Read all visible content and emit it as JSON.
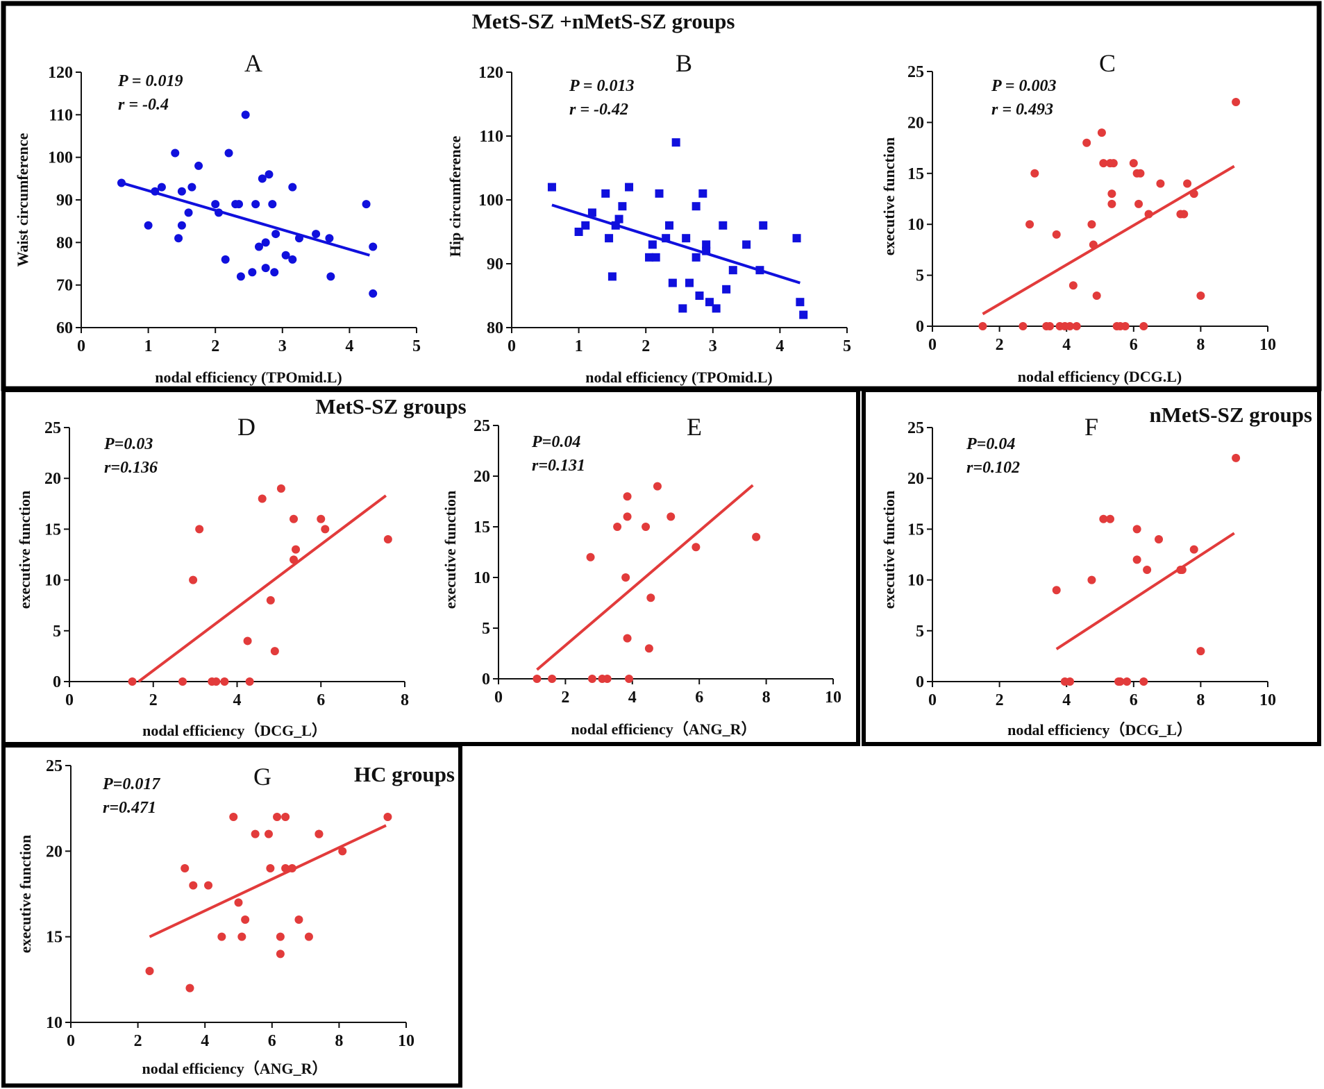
{
  "colors": {
    "blue": "#1010dd",
    "red": "#e23b3b",
    "frame": "#000000"
  },
  "groups": {
    "all": "MetS-SZ +nMetS-SZ groups",
    "mets": "MetS-SZ groups",
    "nmets": "nMetS-SZ groups",
    "hc": "HC groups"
  },
  "chart_data": [
    {
      "type": "scatter",
      "panel": "A",
      "group": "MetS-SZ +nMetS-SZ groups",
      "xlabel": "nodal efficiency (TPOmid.L)",
      "ylabel": "Waist circumference",
      "stat_p": "P = 0.019",
      "stat_r": "r = -0.4",
      "xlim": [
        0,
        5
      ],
      "ylim": [
        60,
        120
      ],
      "xticks": [
        0,
        1,
        2,
        3,
        4,
        5
      ],
      "yticks": [
        60,
        70,
        80,
        90,
        100,
        110,
        120
      ],
      "marker": "circle",
      "color": "#1010dd",
      "points": [
        [
          0.6,
          94
        ],
        [
          1.0,
          84
        ],
        [
          1.1,
          92
        ],
        [
          1.2,
          93
        ],
        [
          1.4,
          101
        ],
        [
          1.45,
          81
        ],
        [
          1.5,
          84
        ],
        [
          1.5,
          92
        ],
        [
          1.6,
          87
        ],
        [
          1.65,
          93
        ],
        [
          1.75,
          98
        ],
        [
          2.0,
          89
        ],
        [
          2.05,
          87
        ],
        [
          2.15,
          76
        ],
        [
          2.2,
          101
        ],
        [
          2.3,
          89
        ],
        [
          2.35,
          89
        ],
        [
          2.38,
          72
        ],
        [
          2.45,
          110
        ],
        [
          2.55,
          73
        ],
        [
          2.6,
          89
        ],
        [
          2.65,
          79
        ],
        [
          2.7,
          95
        ],
        [
          2.75,
          74
        ],
        [
          2.75,
          80
        ],
        [
          2.8,
          96
        ],
        [
          2.85,
          89
        ],
        [
          2.88,
          73
        ],
        [
          2.9,
          82
        ],
        [
          3.05,
          77
        ],
        [
          3.15,
          93
        ],
        [
          3.15,
          76
        ],
        [
          3.25,
          81
        ],
        [
          3.5,
          82
        ],
        [
          3.7,
          81
        ],
        [
          3.72,
          72
        ],
        [
          4.25,
          89
        ],
        [
          4.35,
          79
        ],
        [
          4.35,
          68
        ]
      ],
      "fit": [
        [
          0.6,
          94
        ],
        [
          4.3,
          77
        ]
      ]
    },
    {
      "type": "scatter",
      "panel": "B",
      "group": "MetS-SZ +nMetS-SZ groups",
      "xlabel": "nodal efficiency (TPOmid.L)",
      "ylabel": "Hip circumference",
      "stat_p": "P = 0.013",
      "stat_r": "r = -0.42",
      "xlim": [
        0,
        5
      ],
      "ylim": [
        80,
        120
      ],
      "xticks": [
        0,
        1,
        2,
        3,
        4,
        5
      ],
      "yticks": [
        80,
        90,
        100,
        110,
        120
      ],
      "marker": "square",
      "color": "#1010dd",
      "points": [
        [
          0.6,
          102
        ],
        [
          1.0,
          95
        ],
        [
          1.1,
          96
        ],
        [
          1.2,
          98
        ],
        [
          1.4,
          101
        ],
        [
          1.45,
          94
        ],
        [
          1.5,
          88
        ],
        [
          1.55,
          96
        ],
        [
          1.6,
          97
        ],
        [
          1.65,
          99
        ],
        [
          1.75,
          102
        ],
        [
          2.05,
          91
        ],
        [
          2.1,
          93
        ],
        [
          2.15,
          91
        ],
        [
          2.2,
          101
        ],
        [
          2.3,
          94
        ],
        [
          2.35,
          96
        ],
        [
          2.4,
          87
        ],
        [
          2.45,
          109
        ],
        [
          2.55,
          83
        ],
        [
          2.6,
          94
        ],
        [
          2.65,
          87
        ],
        [
          2.75,
          99
        ],
        [
          2.75,
          91
        ],
        [
          2.8,
          85
        ],
        [
          2.85,
          101
        ],
        [
          2.9,
          92
        ],
        [
          2.9,
          93
        ],
        [
          2.95,
          84
        ],
        [
          3.05,
          83
        ],
        [
          3.15,
          96
        ],
        [
          3.2,
          86
        ],
        [
          3.3,
          89
        ],
        [
          3.5,
          93
        ],
        [
          3.7,
          89
        ],
        [
          3.75,
          96
        ],
        [
          4.25,
          94
        ],
        [
          4.3,
          84
        ],
        [
          4.35,
          82
        ]
      ],
      "fit": [
        [
          0.6,
          99.2
        ],
        [
          4.3,
          87
        ]
      ]
    },
    {
      "type": "scatter",
      "panel": "C",
      "group": "MetS-SZ +nMetS-SZ groups",
      "xlabel": "nodal efficiency (DCG.L)",
      "ylabel": "executive function",
      "stat_p": "P = 0.003",
      "stat_r": "r = 0.493",
      "xlim": [
        0,
        10
      ],
      "ylim": [
        0,
        25
      ],
      "xticks": [
        0,
        2,
        4,
        6,
        8,
        10
      ],
      "yticks": [
        0,
        5,
        10,
        15,
        20,
        25
      ],
      "marker": "circle",
      "color": "#e23b3b",
      "points": [
        [
          1.5,
          0
        ],
        [
          2.7,
          0
        ],
        [
          2.9,
          10
        ],
        [
          3.05,
          15
        ],
        [
          3.4,
          0
        ],
        [
          3.5,
          0
        ],
        [
          3.7,
          9
        ],
        [
          3.8,
          0
        ],
        [
          3.95,
          0
        ],
        [
          4.1,
          0
        ],
        [
          4.2,
          4
        ],
        [
          4.3,
          0
        ],
        [
          4.6,
          18
        ],
        [
          4.75,
          10
        ],
        [
          4.8,
          8
        ],
        [
          4.9,
          3
        ],
        [
          5.05,
          19
        ],
        [
          5.1,
          16
        ],
        [
          5.3,
          16
        ],
        [
          5.35,
          13
        ],
        [
          5.35,
          12
        ],
        [
          5.4,
          16
        ],
        [
          5.5,
          0
        ],
        [
          5.6,
          0
        ],
        [
          5.75,
          0
        ],
        [
          6.0,
          16
        ],
        [
          6.1,
          15
        ],
        [
          6.15,
          12
        ],
        [
          6.2,
          15
        ],
        [
          6.3,
          0
        ],
        [
          6.45,
          11
        ],
        [
          6.8,
          14
        ],
        [
          7.4,
          11
        ],
        [
          7.5,
          11
        ],
        [
          7.6,
          14
        ],
        [
          7.8,
          13
        ],
        [
          8.0,
          3
        ],
        [
          9.05,
          22
        ]
      ],
      "fit": [
        [
          1.5,
          1.2
        ],
        [
          9.0,
          15.7
        ]
      ]
    },
    {
      "type": "scatter",
      "panel": "D",
      "group": "MetS-SZ groups",
      "xlabel": "nodal efficiency（DCG_L）",
      "ylabel": "executive function",
      "stat_p": "P=0.03",
      "stat_r": "r=0.136",
      "xlim": [
        0,
        8
      ],
      "ylim": [
        0,
        25
      ],
      "xticks": [
        0,
        2,
        4,
        6,
        8
      ],
      "yticks": [
        0,
        5,
        10,
        15,
        20,
        25
      ],
      "marker": "circle",
      "color": "#e23b3b",
      "points": [
        [
          1.5,
          0
        ],
        [
          2.7,
          0
        ],
        [
          2.95,
          10
        ],
        [
          3.1,
          15
        ],
        [
          3.4,
          0
        ],
        [
          3.5,
          0
        ],
        [
          3.7,
          0
        ],
        [
          4.25,
          4
        ],
        [
          4.3,
          0
        ],
        [
          4.6,
          18
        ],
        [
          4.8,
          8
        ],
        [
          4.9,
          3
        ],
        [
          5.05,
          19
        ],
        [
          5.35,
          16
        ],
        [
          5.35,
          12
        ],
        [
          5.4,
          13
        ],
        [
          6.0,
          16
        ],
        [
          6.1,
          15
        ],
        [
          7.6,
          14
        ]
      ],
      "fit": [
        [
          1.65,
          0
        ],
        [
          7.55,
          18.3
        ]
      ]
    },
    {
      "type": "scatter",
      "panel": "E",
      "group": "MetS-SZ groups",
      "xlabel": "nodal efficiency（ANG_R）",
      "ylabel": "executive function",
      "stat_p": "P=0.04",
      "stat_r": "r=0.131",
      "xlim": [
        0,
        10
      ],
      "ylim": [
        0,
        25
      ],
      "xticks": [
        0,
        2,
        4,
        6,
        8,
        10
      ],
      "yticks": [
        0,
        5,
        10,
        15,
        20,
        25
      ],
      "marker": "circle",
      "color": "#e23b3b",
      "points": [
        [
          1.15,
          0
        ],
        [
          1.6,
          0
        ],
        [
          2.75,
          12
        ],
        [
          2.8,
          0
        ],
        [
          3.1,
          0
        ],
        [
          3.25,
          0
        ],
        [
          3.55,
          15
        ],
        [
          3.8,
          10
        ],
        [
          3.85,
          18
        ],
        [
          3.85,
          16
        ],
        [
          3.85,
          4
        ],
        [
          3.9,
          0
        ],
        [
          4.4,
          15
        ],
        [
          4.55,
          8
        ],
        [
          4.5,
          3
        ],
        [
          4.75,
          19
        ],
        [
          5.15,
          16
        ],
        [
          5.9,
          13
        ],
        [
          7.7,
          14
        ]
      ],
      "fit": [
        [
          1.15,
          0.9
        ],
        [
          7.6,
          19.1
        ]
      ]
    },
    {
      "type": "scatter",
      "panel": "F",
      "group": "nMetS-SZ groups",
      "xlabel": "nodal efficiency（DCG_L）",
      "ylabel": "executive function",
      "stat_p": "P=0.04",
      "stat_r": "r=0.102",
      "xlim": [
        0,
        10
      ],
      "ylim": [
        0,
        25
      ],
      "xticks": [
        0,
        2,
        4,
        6,
        8,
        10
      ],
      "yticks": [
        0,
        5,
        10,
        15,
        20,
        25
      ],
      "marker": "circle",
      "color": "#e23b3b",
      "points": [
        [
          3.7,
          9
        ],
        [
          3.95,
          0
        ],
        [
          4.1,
          0
        ],
        [
          4.75,
          10
        ],
        [
          5.1,
          16
        ],
        [
          5.3,
          16
        ],
        [
          5.55,
          0
        ],
        [
          5.6,
          0
        ],
        [
          5.8,
          0
        ],
        [
          6.1,
          15
        ],
        [
          6.1,
          12
        ],
        [
          6.3,
          0
        ],
        [
          6.4,
          11
        ],
        [
          6.75,
          14
        ],
        [
          7.4,
          11
        ],
        [
          7.45,
          11
        ],
        [
          7.8,
          13
        ],
        [
          8.0,
          3
        ],
        [
          9.05,
          22
        ]
      ],
      "fit": [
        [
          3.7,
          3.2
        ],
        [
          9.0,
          14.6
        ]
      ]
    },
    {
      "type": "scatter",
      "panel": "G",
      "group": "HC groups",
      "xlabel": "nodal efficiency（ANG_R）",
      "ylabel": "executive function",
      "stat_p": "P=0.017",
      "stat_r": "r=0.471",
      "xlim": [
        0,
        10
      ],
      "ylim": [
        10,
        25
      ],
      "xticks": [
        0,
        2,
        4,
        6,
        8,
        10
      ],
      "yticks": [
        10,
        15,
        20,
        25
      ],
      "marker": "circle",
      "color": "#e23b3b",
      "points": [
        [
          2.35,
          13
        ],
        [
          3.4,
          19
        ],
        [
          3.55,
          12
        ],
        [
          3.65,
          18
        ],
        [
          4.1,
          18
        ],
        [
          4.5,
          15
        ],
        [
          4.85,
          22
        ],
        [
          5.0,
          17
        ],
        [
          5.1,
          15
        ],
        [
          5.2,
          16
        ],
        [
          5.5,
          21
        ],
        [
          5.9,
          21
        ],
        [
          5.95,
          19
        ],
        [
          6.15,
          22
        ],
        [
          6.25,
          15
        ],
        [
          6.25,
          14
        ],
        [
          6.4,
          22
        ],
        [
          6.4,
          19
        ],
        [
          6.6,
          19
        ],
        [
          6.8,
          16
        ],
        [
          7.1,
          15
        ],
        [
          7.4,
          21
        ],
        [
          7.4,
          21
        ],
        [
          8.1,
          20
        ],
        [
          9.45,
          22
        ]
      ],
      "fit": [
        [
          2.35,
          15
        ],
        [
          9.4,
          21.5
        ]
      ]
    }
  ]
}
